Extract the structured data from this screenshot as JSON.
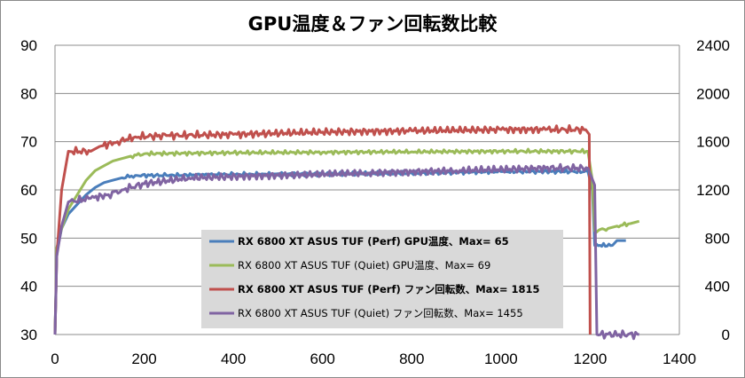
{
  "chart_data": {
    "type": "line",
    "title": "GPU温度＆ファン回転数比較",
    "x_ticks": [
      "0",
      "200",
      "400",
      "600",
      "800",
      "1000",
      "1200",
      "1400"
    ],
    "y_left_ticks": [
      "30",
      "40",
      "50",
      "60",
      "70",
      "80",
      "90"
    ],
    "y_right_ticks": [
      "0",
      "400",
      "800",
      "1200",
      "1600",
      "2000",
      "2400"
    ],
    "xlim": [
      0,
      1400
    ],
    "ylim_left": [
      30,
      90
    ],
    "ylim_right": [
      0,
      2400
    ],
    "grid": "horizontal",
    "legend_position": "center-left",
    "series": [
      {
        "name": "RX 6800 XT ASUS TUF (Perf) GPU温度、Max= 65",
        "axis": "left",
        "color": "#4a7ebb",
        "bold": true,
        "points": [
          [
            0,
            30
          ],
          [
            4,
            47
          ],
          [
            15,
            52
          ],
          [
            30,
            55
          ],
          [
            50,
            57
          ],
          [
            70,
            59
          ],
          [
            90,
            60.5
          ],
          [
            110,
            61.5
          ],
          [
            130,
            62
          ],
          [
            150,
            62.5
          ],
          [
            180,
            63
          ],
          [
            250,
            63
          ],
          [
            400,
            63.2
          ],
          [
            600,
            63.3
          ],
          [
            800,
            63.5
          ],
          [
            1000,
            63.8
          ],
          [
            1195,
            63.8
          ],
          [
            1205,
            60
          ],
          [
            1210,
            48.5
          ],
          [
            1250,
            48.5
          ],
          [
            1260,
            49.5
          ],
          [
            1280,
            49.5
          ]
        ]
      },
      {
        "name": "RX 6800 XT ASUS TUF (Quiet) GPU温度、Max= 69",
        "axis": "left",
        "color": "#9bbb59",
        "bold": false,
        "points": [
          [
            0,
            30
          ],
          [
            4,
            48
          ],
          [
            15,
            52
          ],
          [
            30,
            56
          ],
          [
            50,
            59
          ],
          [
            70,
            62
          ],
          [
            90,
            64
          ],
          [
            110,
            65
          ],
          [
            130,
            66
          ],
          [
            150,
            66.5
          ],
          [
            170,
            67
          ],
          [
            200,
            67.5
          ],
          [
            400,
            67.7
          ],
          [
            600,
            67.8
          ],
          [
            800,
            67.9
          ],
          [
            1000,
            68
          ],
          [
            1195,
            68
          ],
          [
            1205,
            62
          ],
          [
            1210,
            51.5
          ],
          [
            1240,
            52
          ],
          [
            1260,
            52.5
          ],
          [
            1290,
            53
          ],
          [
            1310,
            53.5
          ]
        ]
      },
      {
        "name": "RX 6800 XT ASUS TUF (Perf) ファン回転数、Max= 1815",
        "axis": "right",
        "color": "#c0504d",
        "bold": true,
        "points": [
          [
            0,
            0
          ],
          [
            4,
            650
          ],
          [
            15,
            1200
          ],
          [
            30,
            1520
          ],
          [
            80,
            1520
          ],
          [
            100,
            1560
          ],
          [
            140,
            1600
          ],
          [
            180,
            1640
          ],
          [
            250,
            1650
          ],
          [
            400,
            1660
          ],
          [
            600,
            1680
          ],
          [
            800,
            1690
          ],
          [
            1000,
            1700
          ],
          [
            1100,
            1700
          ],
          [
            1190,
            1700
          ],
          [
            1198,
            1660
          ],
          [
            1200,
            0
          ]
        ]
      },
      {
        "name": "RX 6800 XT ASUS TUF (Quiet) ファン回転数、Max= 1455",
        "axis": "right",
        "color": "#8064a2",
        "bold": false,
        "points": [
          [
            0,
            0
          ],
          [
            4,
            650
          ],
          [
            15,
            900
          ],
          [
            30,
            1100
          ],
          [
            80,
            1130
          ],
          [
            120,
            1160
          ],
          [
            150,
            1200
          ],
          [
            200,
            1250
          ],
          [
            300,
            1300
          ],
          [
            500,
            1320
          ],
          [
            700,
            1340
          ],
          [
            900,
            1360
          ],
          [
            1100,
            1380
          ],
          [
            1195,
            1380
          ],
          [
            1210,
            1240
          ],
          [
            1215,
            0
          ],
          [
            1310,
            0
          ]
        ]
      }
    ]
  }
}
